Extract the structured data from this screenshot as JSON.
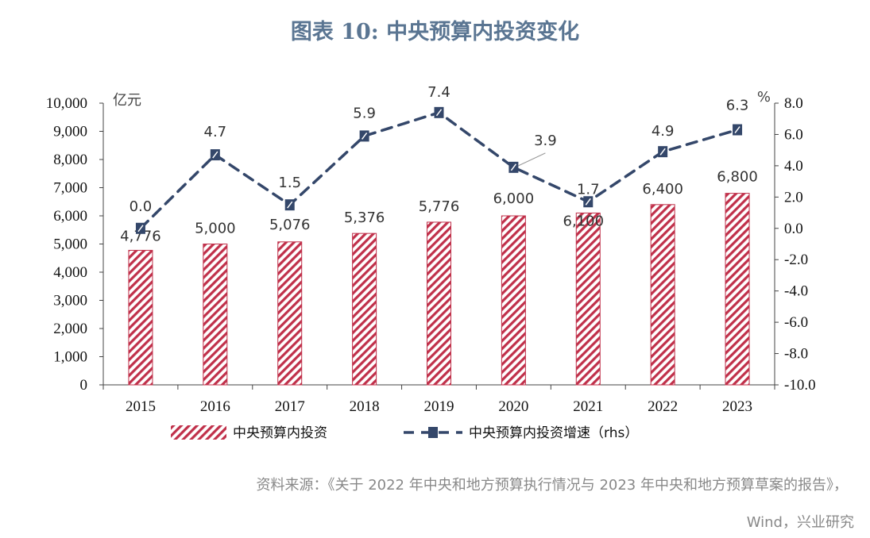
{
  "title": "图表 10: 中央预算内投资变化",
  "source": {
    "line1": "资料来源：《关于 2022 年中央和地方预算执行情况与 2023 年中央和地方预算草案的报告》，",
    "line2": "Wind，兴业研究"
  },
  "chart_data": {
    "type": "bar",
    "categories": [
      "2015",
      "2016",
      "2017",
      "2018",
      "2019",
      "2020",
      "2021",
      "2022",
      "2023"
    ],
    "series": [
      {
        "name": "中央预算内投资",
        "type": "bar",
        "axis": "left",
        "values": [
          4776,
          5000,
          5076,
          5376,
          5776,
          6000,
          6100,
          6400,
          6800
        ],
        "labels": [
          "4,776",
          "5,000",
          "5,076",
          "5,376",
          "5,776",
          "6,000",
          "6,100",
          "6,400",
          "6,800"
        ],
        "color": "#c0304a"
      },
      {
        "name": "中央预算内投资增速（rhs）",
        "type": "line",
        "axis": "right",
        "values": [
          0.0,
          4.7,
          1.5,
          5.9,
          7.4,
          3.9,
          1.7,
          4.9,
          6.3
        ],
        "labels": [
          "0.0",
          "4.7",
          "1.5",
          "5.9",
          "7.4",
          "3.9",
          "1.7",
          "4.9",
          "6.3"
        ],
        "color": "#34476a"
      }
    ],
    "y_left": {
      "unit": "亿元",
      "ylim": [
        0,
        10000
      ],
      "ticks": [
        "0",
        "1,000",
        "2,000",
        "3,000",
        "4,000",
        "5,000",
        "6,000",
        "7,000",
        "8,000",
        "9,000",
        "10,000"
      ]
    },
    "y_right": {
      "unit": "%",
      "ylim": [
        -10,
        8
      ],
      "ticks": [
        "-10.0",
        "-8.0",
        "-6.0",
        "-4.0",
        "-2.0",
        "0.0",
        "2.0",
        "4.0",
        "6.0",
        "8.0"
      ]
    },
    "grid": false,
    "legend": "bottom"
  }
}
